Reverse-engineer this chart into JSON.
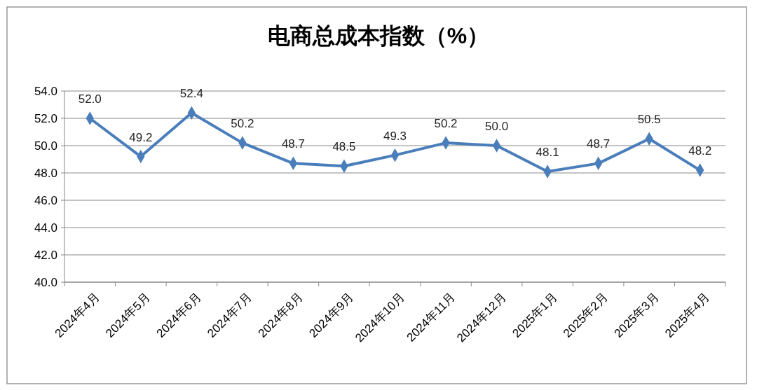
{
  "chart_data": {
    "type": "line",
    "title": "电商总成本指数（%）",
    "categories": [
      "2024年4月",
      "2024年5月",
      "2024年6月",
      "2024年7月",
      "2024年8月",
      "2024年9月",
      "2024年10月",
      "2024年11月",
      "2024年12月",
      "2025年1月",
      "2025年2月",
      "2025年3月",
      "2025年4月"
    ],
    "series": [
      {
        "color": "#4a7ebb",
        "values": [
          52.0,
          49.2,
          52.4,
          50.2,
          48.7,
          48.5,
          49.3,
          50.2,
          50.0,
          48.1,
          48.7,
          50.5,
          48.2
        ],
        "value_labels": [
          "52.0",
          "49.2",
          "52.4",
          "50.2",
          "48.7",
          "48.5",
          "49.3",
          "50.2",
          "50.0",
          "48.1",
          "48.7",
          "50.5",
          "48.2"
        ]
      }
    ],
    "ylim": [
      40,
      54
    ],
    "yticks": [
      {
        "value": 40,
        "label": "40.0"
      },
      {
        "value": 42,
        "label": "42.0"
      },
      {
        "value": 44,
        "label": "44.0"
      },
      {
        "value": 46,
        "label": "46.0"
      },
      {
        "value": 48,
        "label": "48.0"
      },
      {
        "value": 50,
        "label": "50.0"
      },
      {
        "value": 52,
        "label": "52.0"
      },
      {
        "value": 54,
        "label": "54.0"
      }
    ],
    "grid": "y",
    "marker": "diamond",
    "line_style": "solid"
  }
}
